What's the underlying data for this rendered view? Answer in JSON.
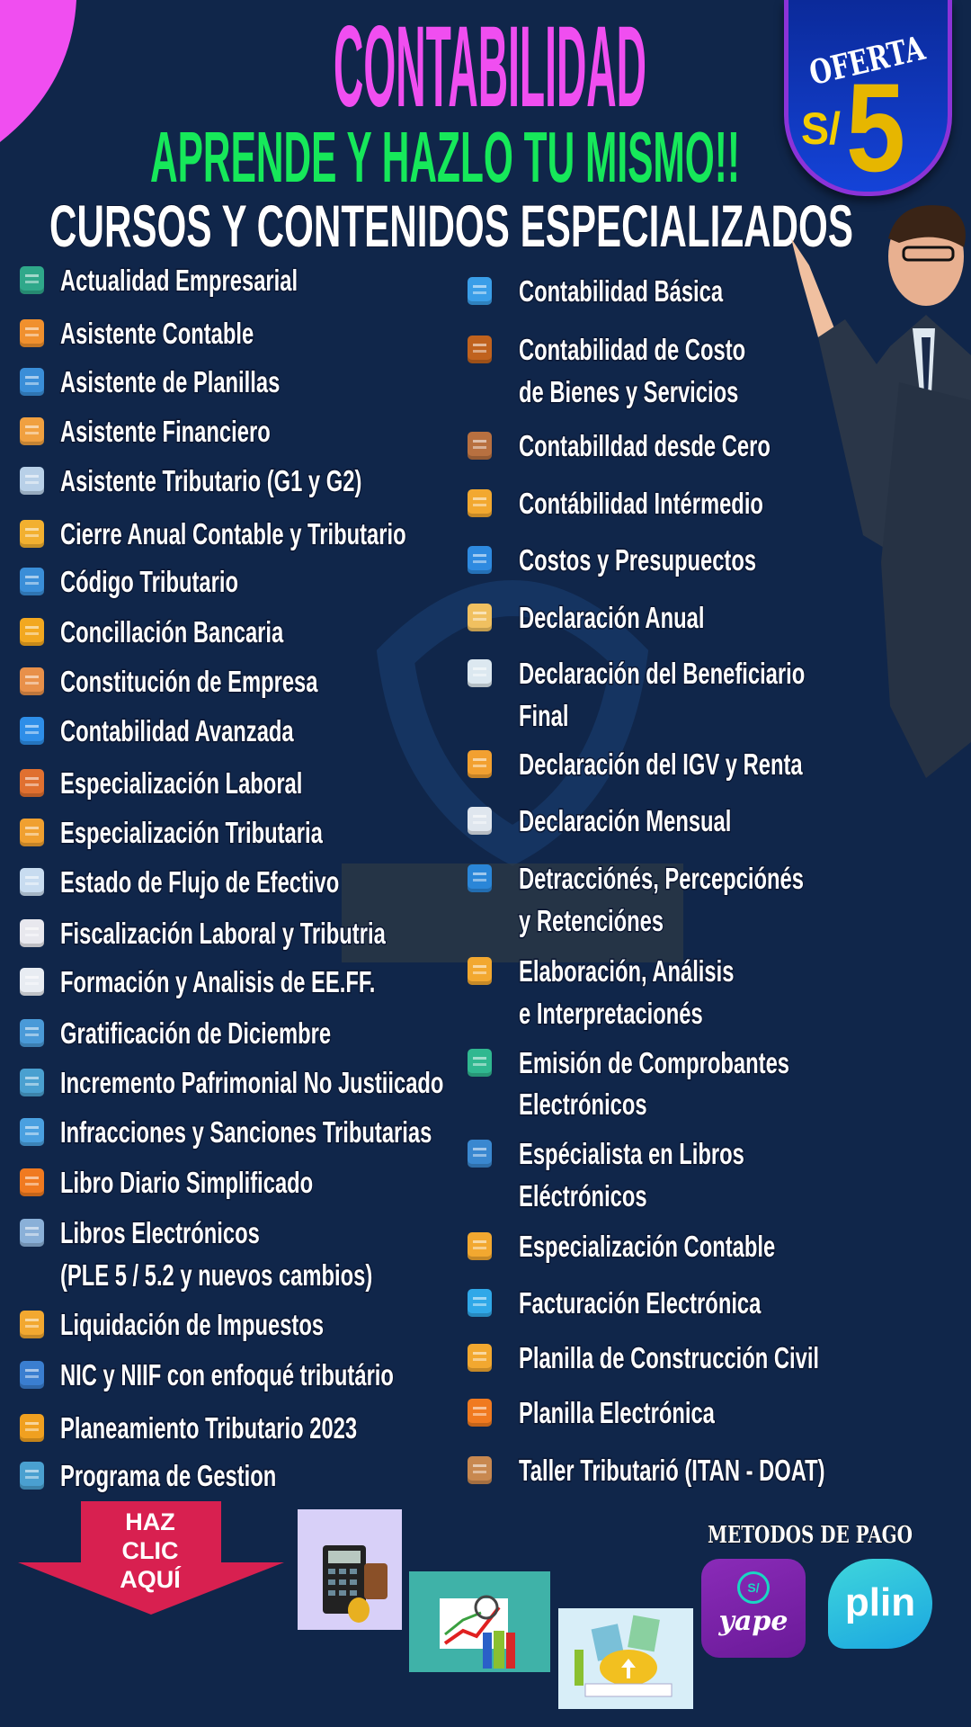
{
  "header": {
    "title": "CONTABILIDAD",
    "subtitle": "APRENDE Y HAZLO TU MISMO!!",
    "section_title": "CURSOS Y CONTENIDOS ESPECIALIZADOS",
    "colors": {
      "title": "#f04ef0",
      "subtitle": "#16e85a",
      "background": "#10264a"
    }
  },
  "offer_badge": {
    "label": "OFERTA",
    "currency": "S/",
    "price": "5",
    "price_color": "#e6b600"
  },
  "courses": {
    "left": [
      {
        "label": "Actualidad Empresarial",
        "icon": "globe-icon",
        "color": "#2fa88a"
      },
      {
        "label": "Asistente Contable",
        "icon": "person-icon",
        "color": "#f0902e"
      },
      {
        "label": "Asistente de Planillas",
        "icon": "grid-icon",
        "color": "#3a8ed8"
      },
      {
        "label": "Asistente Financiero",
        "icon": "box-icon",
        "color": "#f0a040"
      },
      {
        "label": "Asistente Tributario (G1 y G2)",
        "icon": "globe-icon",
        "color": "#b8d0e8"
      },
      {
        "label": "Cierre Anual Contable y Tributario",
        "icon": "document-icon",
        "color": "#f2b030"
      },
      {
        "label": "Código Tributario",
        "icon": "document-icon",
        "color": "#3a8ed8"
      },
      {
        "label": "Concillación Bancaria",
        "icon": "bank-icon",
        "color": "#f2a820"
      },
      {
        "label": "Constitución de Empresa",
        "icon": "person-icon",
        "color": "#e8904a"
      },
      {
        "label": "Contabilidad Avanzada",
        "icon": "document-icon",
        "color": "#2e8ee8"
      },
      {
        "label": "Especialización Laboral",
        "icon": "worker-icon",
        "color": "#e07030"
      },
      {
        "label": "Especialización Tributaria",
        "icon": "chart-icon",
        "color": "#f0a030"
      },
      {
        "label": "Estado de Flujo de Efectivo",
        "icon": "calendar-icon",
        "color": "#c8dcf0"
      },
      {
        "label": "Fiscalización Laboral y Tributria",
        "icon": "calendar-icon",
        "color": "#e8e8ee"
      },
      {
        "label": "Formación y Analisis de EE.FF.",
        "icon": "document-icon",
        "color": "#e8ecf2"
      },
      {
        "label": "Gratificación de Diciembre",
        "icon": "calendar-icon",
        "color": "#4a9ad8"
      },
      {
        "label": "Incremento Pafrimonial No Justiicado",
        "icon": "house-icon",
        "color": "#4aa0d0"
      },
      {
        "label": "Infracciones y Sanciones Tributarias",
        "icon": "bank-icon",
        "color": "#4aa0e0"
      },
      {
        "label": "Libro Diario Simplificado",
        "icon": "clipboard-icon",
        "color": "#f07a20"
      },
      {
        "label": "Libros Electrónicos",
        "line2": "(PLE 5 / 5.2 y nuevos cambios)",
        "icon": "book-icon",
        "color": "#8ab0d8"
      },
      {
        "label": "Liquidación de Impuestos",
        "icon": "coins-icon",
        "color": "#f2a830"
      },
      {
        "label": "NIC y NIIF con enfoqué tributário",
        "icon": "building-icon",
        "color": "#3a7ed0"
      },
      {
        "label": "Planeamiento Tributario 2023",
        "icon": "leaf-icon",
        "color": "#f0a020"
      },
      {
        "label": "Programa de Gestion",
        "icon": "house-icon",
        "color": "#4aa0d0"
      }
    ],
    "right": [
      {
        "label": "Contabilidad Básica",
        "icon": "document-icon",
        "color": "#3a9ee8"
      },
      {
        "label": "Contabilidad de Costo",
        "line2": "de Bienes y Servicios",
        "icon": "book-icon",
        "color": "#c0621e"
      },
      {
        "label": "Contabilldad desde Cero",
        "icon": "book-icon",
        "color": "#b87040"
      },
      {
        "label": "Contábilidad Intérmedio",
        "icon": "document-icon",
        "color": "#f2a830"
      },
      {
        "label": "Costos y Presupuectos",
        "icon": "document-icon",
        "color": "#2e8ae0"
      },
      {
        "label": "Declaración Anual",
        "icon": "document-icon",
        "color": "#f0c060"
      },
      {
        "label": "Declaración del Beneficiario",
        "line2": "Final",
        "icon": "document-icon",
        "color": "#dce8f0"
      },
      {
        "label": "Declaración del IGV y Renta",
        "icon": "document-icon",
        "color": "#f2a030"
      },
      {
        "label": "Declaración Mensual",
        "icon": "document-icon",
        "color": "#dfe6ee"
      },
      {
        "label": "Detracciónés, Percepciónés",
        "line2": "y Retenciónes",
        "icon": "person-icon",
        "color": "#2a86d8"
      },
      {
        "label": "Elaboración, Análisis",
        "line2": "e Interpretacionés",
        "icon": "tools-icon",
        "color": "#f2a830"
      },
      {
        "label": "Emisión de Comprobantes",
        "line2": "Electrónicos",
        "icon": "calendar-icon",
        "color": "#30b890"
      },
      {
        "label": "Espécialista en Libros",
        "line2": "Eléctrónicos",
        "icon": "book-icon",
        "color": "#3a88d0"
      },
      {
        "label": "Especialización Contable",
        "icon": "document-icon",
        "color": "#f2a830"
      },
      {
        "label": "Facturación Electrónica",
        "icon": "receipt-icon",
        "color": "#30a8e8"
      },
      {
        "label": "Planilla de Construcción Civil",
        "icon": "tools-icon",
        "color": "#f2a830"
      },
      {
        "label": "Planilla Electrónica",
        "icon": "document-icon",
        "color": "#f07a20"
      },
      {
        "label": "Taller Tributarió (ITAN - DOAT)",
        "icon": "book-icon",
        "color": "#c88850"
      }
    ]
  },
  "cta": {
    "line1": "HAZ",
    "line2": "CLIC",
    "line3": "AQUÍ",
    "color": "#d82050"
  },
  "payment": {
    "title": "METODOS DE PAGO",
    "yape": "yape",
    "yape_symbol": "S/",
    "plin": "plin"
  }
}
